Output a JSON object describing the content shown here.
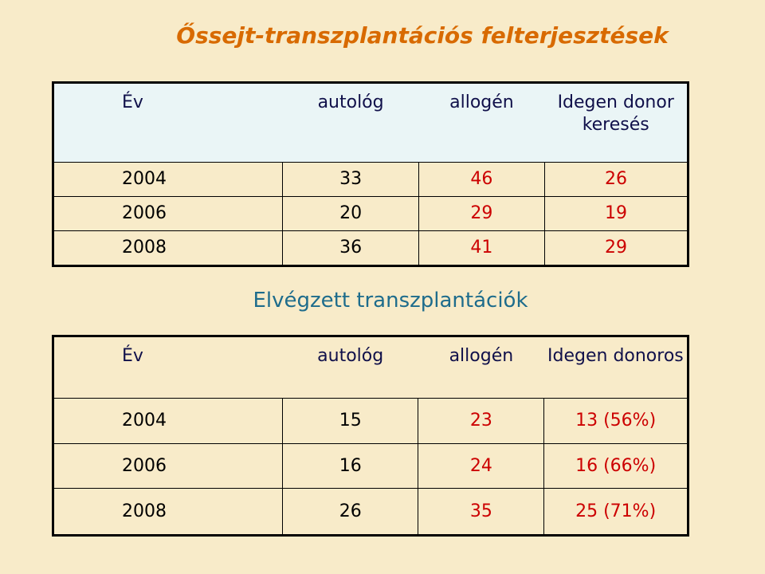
{
  "title": "Őssejt-transzplantációs felterjesztések",
  "table1": {
    "header": [
      "Év",
      "autológ",
      "allogén",
      "Idegen donor keresés"
    ],
    "rows": [
      [
        "2004",
        "33",
        "46",
        "26"
      ],
      [
        "2006",
        "20",
        "29",
        "19"
      ],
      [
        "2008",
        "36",
        "41",
        "29"
      ]
    ]
  },
  "subtitle": "Elvégzett transzplantációk",
  "table2": {
    "header": [
      "Év",
      "autológ",
      "allogén",
      "Idegen donoros"
    ],
    "rows": [
      [
        "2004",
        "15",
        "23",
        "13 (56%)"
      ],
      [
        "2006",
        "16",
        "24",
        "16 (66%)"
      ],
      [
        "2008",
        "26",
        "35",
        "25 (71%)"
      ]
    ]
  }
}
